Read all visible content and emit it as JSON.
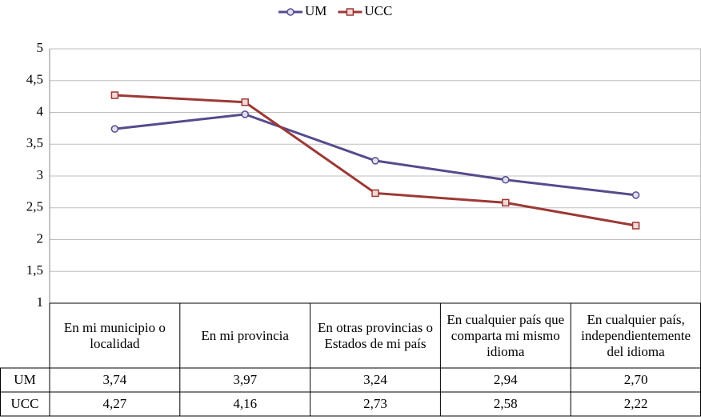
{
  "chart_data": {
    "type": "line",
    "categories": [
      "En mi municipio o localidad",
      "En mi provincia",
      "En otras provincias o Estados de mi país",
      "En cualquier país que comparta mi mismo idioma",
      "En cualquier país, independientemente del idioma"
    ],
    "series": [
      {
        "name": "UM",
        "color": "#584a8c",
        "marker": "circle",
        "values": [
          3.74,
          3.97,
          3.24,
          2.94,
          2.7
        ],
        "value_labels": [
          "3,74",
          "3,97",
          "3,24",
          "2,94",
          "2,70"
        ]
      },
      {
        "name": "UCC",
        "color": "#9c3936",
        "marker": "square",
        "values": [
          4.27,
          4.16,
          2.73,
          2.58,
          2.22
        ],
        "value_labels": [
          "4,27",
          "4,16",
          "2,73",
          "2,58",
          "2,22"
        ]
      }
    ],
    "ylim": [
      1,
      5
    ],
    "yticks": [
      1,
      {
        "value": 1.5,
        "label": "1,5"
      },
      2,
      {
        "value": 2.5,
        "label": "2,5"
      },
      3,
      {
        "value": 3.5,
        "label": "3,5"
      },
      4,
      {
        "value": 4.5,
        "label": "4,5"
      },
      5
    ],
    "grid": true,
    "legend": "top"
  }
}
